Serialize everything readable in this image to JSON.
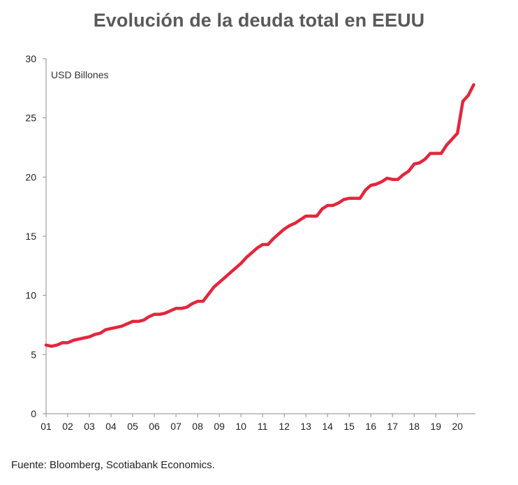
{
  "chart_data": {
    "type": "line",
    "title": "Evolución de la deuda total en EEUU",
    "unit_label": "USD Billones",
    "xlabel": "",
    "ylabel": "",
    "x_tick_labels": [
      "01",
      "02",
      "03",
      "04",
      "05",
      "06",
      "07",
      "08",
      "09",
      "10",
      "11",
      "12",
      "13",
      "14",
      "15",
      "16",
      "17",
      "18",
      "19",
      "20"
    ],
    "y_tick_labels": [
      "0",
      "5",
      "10",
      "15",
      "20",
      "25",
      "30"
    ],
    "xlim": [
      2001.0,
      2020.83
    ],
    "ylim": [
      0,
      30
    ],
    "grid": false,
    "legend": "none",
    "series": [
      {
        "color": "#e3263d",
        "x": [
          2001.0,
          2001.25,
          2001.5,
          2001.75,
          2002.0,
          2002.25,
          2002.5,
          2002.75,
          2003.0,
          2003.25,
          2003.5,
          2003.75,
          2004.0,
          2004.25,
          2004.5,
          2004.75,
          2005.0,
          2005.25,
          2005.5,
          2005.75,
          2006.0,
          2006.25,
          2006.5,
          2006.75,
          2007.0,
          2007.25,
          2007.5,
          2007.75,
          2008.0,
          2008.25,
          2008.5,
          2008.75,
          2009.0,
          2009.25,
          2009.5,
          2009.75,
          2010.0,
          2010.25,
          2010.5,
          2010.75,
          2011.0,
          2011.25,
          2011.5,
          2011.75,
          2012.0,
          2012.25,
          2012.5,
          2012.75,
          2013.0,
          2013.25,
          2013.5,
          2013.75,
          2014.0,
          2014.25,
          2014.5,
          2014.75,
          2015.0,
          2015.25,
          2015.5,
          2015.75,
          2016.0,
          2016.25,
          2016.5,
          2016.75,
          2017.0,
          2017.25,
          2017.5,
          2017.75,
          2018.0,
          2018.25,
          2018.5,
          2018.75,
          2019.0,
          2019.25,
          2019.5,
          2019.75,
          2020.0,
          2020.25,
          2020.5,
          2020.75
        ],
        "values": [
          5.8,
          5.7,
          5.8,
          6.0,
          6.0,
          6.2,
          6.3,
          6.4,
          6.5,
          6.7,
          6.8,
          7.1,
          7.2,
          7.3,
          7.4,
          7.6,
          7.8,
          7.8,
          7.9,
          8.2,
          8.4,
          8.4,
          8.5,
          8.7,
          8.9,
          8.9,
          9.0,
          9.3,
          9.5,
          9.5,
          10.1,
          10.7,
          11.1,
          11.5,
          11.9,
          12.3,
          12.7,
          13.2,
          13.6,
          14.0,
          14.3,
          14.3,
          14.8,
          15.2,
          15.6,
          15.9,
          16.1,
          16.4,
          16.7,
          16.7,
          16.7,
          17.3,
          17.6,
          17.6,
          17.8,
          18.1,
          18.2,
          18.2,
          18.2,
          18.9,
          19.3,
          19.4,
          19.6,
          19.9,
          19.8,
          19.8,
          20.2,
          20.5,
          21.1,
          21.2,
          21.5,
          22.0,
          22.0,
          22.0,
          22.7,
          23.2,
          23.7,
          26.4,
          26.9,
          27.8
        ]
      }
    ]
  },
  "footer": {
    "source": "Fuente: Bloomberg,  Scotiabank Economics."
  }
}
